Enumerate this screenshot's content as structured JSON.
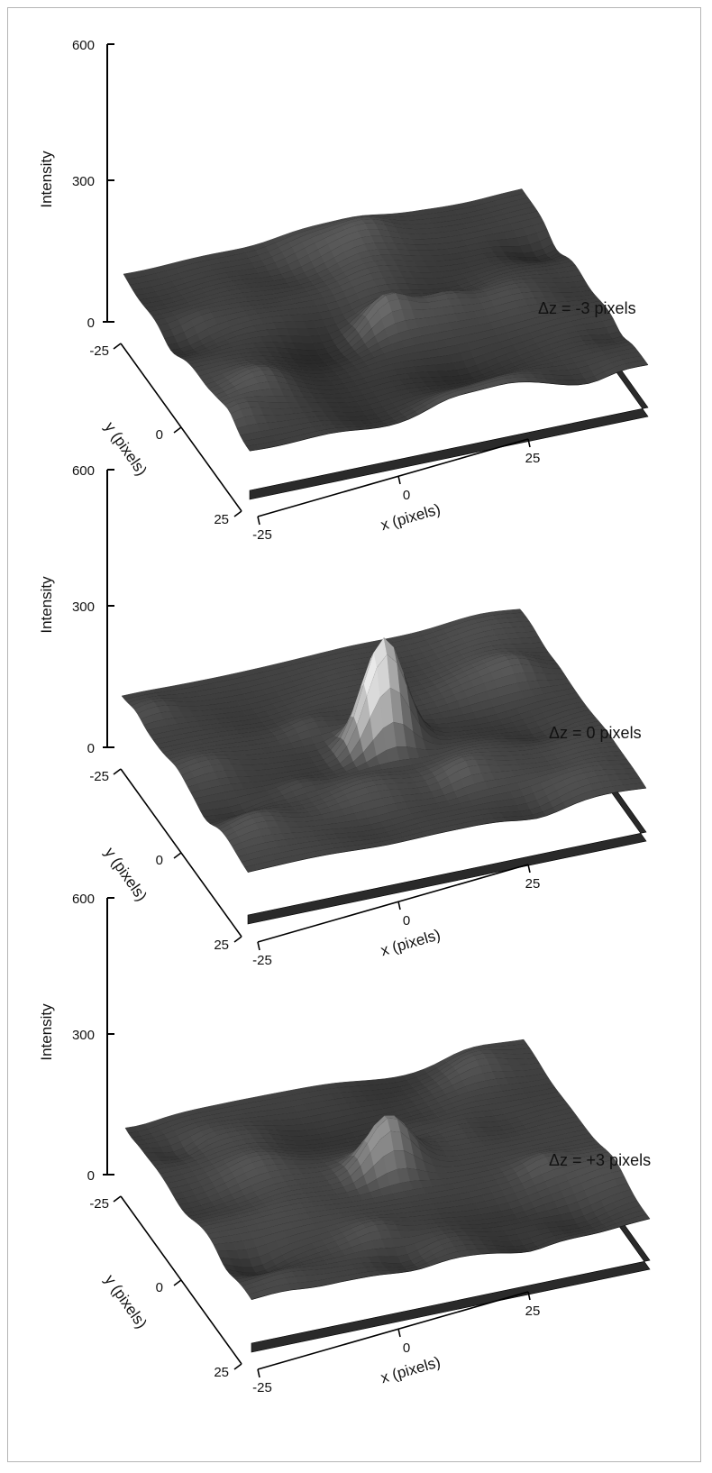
{
  "figure": {
    "panels": [
      {
        "dz_label": "Δz = -3 pixels",
        "z_axis": {
          "title": "Intensity",
          "ticks": [
            "0",
            "300",
            "600"
          ]
        },
        "y_axis": {
          "title": "y (pixels)",
          "ticks": [
            "-25",
            "0",
            "25"
          ]
        },
        "x_axis": {
          "title": "x (pixels)",
          "ticks": [
            "-25",
            "0",
            "25"
          ]
        }
      },
      {
        "dz_label": "Δz = 0 pixels",
        "z_axis": {
          "title": "Intensity",
          "ticks": [
            "0",
            "300",
            "600"
          ]
        },
        "y_axis": {
          "title": "y (pixels)",
          "ticks": [
            "-25",
            "0",
            "25"
          ]
        },
        "x_axis": {
          "title": "x (pixels)",
          "ticks": [
            "-25",
            "0",
            "25"
          ]
        }
      },
      {
        "dz_label": "Δz = +3 pixels",
        "z_axis": {
          "title": "Intensity",
          "ticks": [
            "0",
            "300",
            "600"
          ]
        },
        "y_axis": {
          "title": "y (pixels)",
          "ticks": [
            "-25",
            "0",
            "25"
          ]
        },
        "x_axis": {
          "title": "x (pixels)",
          "ticks": [
            "-25",
            "0",
            "25"
          ]
        }
      }
    ]
  },
  "chart_data": [
    {
      "type": "surface",
      "dz": -3,
      "x_range": [
        -25,
        25
      ],
      "y_range": [
        -25,
        25
      ],
      "z_range": [
        0,
        600
      ],
      "background_level": 90,
      "peak": {
        "x": 0,
        "y": 0,
        "intensity": 150
      },
      "noise_amplitude": 40,
      "colormap": "grayscale"
    },
    {
      "type": "surface",
      "dz": 0,
      "x_range": [
        -25,
        25
      ],
      "y_range": [
        -25,
        25
      ],
      "z_range": [
        0,
        600
      ],
      "background_level": 90,
      "peak": {
        "x": 0,
        "y": 0,
        "intensity": 330
      },
      "noise_amplitude": 40,
      "colormap": "grayscale"
    },
    {
      "type": "surface",
      "dz": 3,
      "x_range": [
        -25,
        25
      ],
      "y_range": [
        -25,
        25
      ],
      "z_range": [
        0,
        600
      ],
      "background_level": 90,
      "peak": {
        "x": 0,
        "y": 0,
        "intensity": 180
      },
      "noise_amplitude": 40,
      "colormap": "grayscale"
    }
  ]
}
